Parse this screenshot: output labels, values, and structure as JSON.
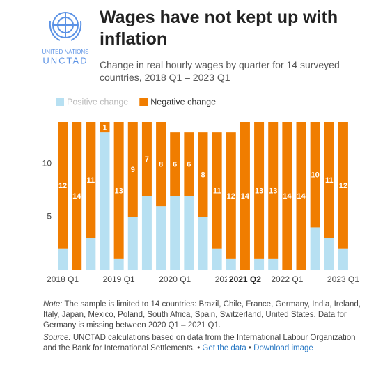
{
  "logo": {
    "line1": "UNITED NATIONS",
    "line2": "UNCTAD"
  },
  "chart_data": {
    "type": "stacked_bar",
    "title": "Wages have not kept up with inflation",
    "subtitle": "Change in real hourly wages by quarter for 14 surveyed countries, 2018 Q1 – 2023 Q1",
    "categories": [
      "2018 Q1",
      null,
      null,
      null,
      "2019 Q1",
      null,
      null,
      null,
      "2020 Q1",
      null,
      null,
      null,
      "2021 Q1",
      "2021 Q2",
      null,
      null,
      "2022 Q1",
      null,
      null,
      null,
      "2023 Q1"
    ],
    "series": [
      {
        "name": "Positive change",
        "color": "#b7e0f2",
        "values": [
          2,
          0,
          3,
          13,
          1,
          5,
          7,
          6,
          7,
          7,
          5,
          2,
          1,
          0,
          1,
          1,
          0,
          0,
          4,
          3,
          2
        ]
      },
      {
        "name": "Negative change",
        "color": "#f07d00",
        "values": [
          12,
          14,
          11,
          1,
          13,
          9,
          7,
          8,
          6,
          6,
          8,
          11,
          12,
          14,
          13,
          13,
          14,
          14,
          10,
          11,
          12
        ]
      }
    ],
    "ylim": [
      0,
      14
    ],
    "yticks": [
      5,
      10
    ],
    "legend": "top-left",
    "note_label": "Note:",
    "note": "The sample is limited to 14 countries: Brazil, Chile, France, Germany, India, Ireland, Italy, Japan, Mexico, Poland, South Africa, Spain, Switzerland, United States. Data for Germany is missing between 2020 Q1 – 2021 Q1.",
    "source_label": "Source:",
    "source": "UNCTAD calculations based on data from the International Labour Organization and the Bank for International Settlements.",
    "links": [
      "Get the data",
      "Download image"
    ]
  }
}
